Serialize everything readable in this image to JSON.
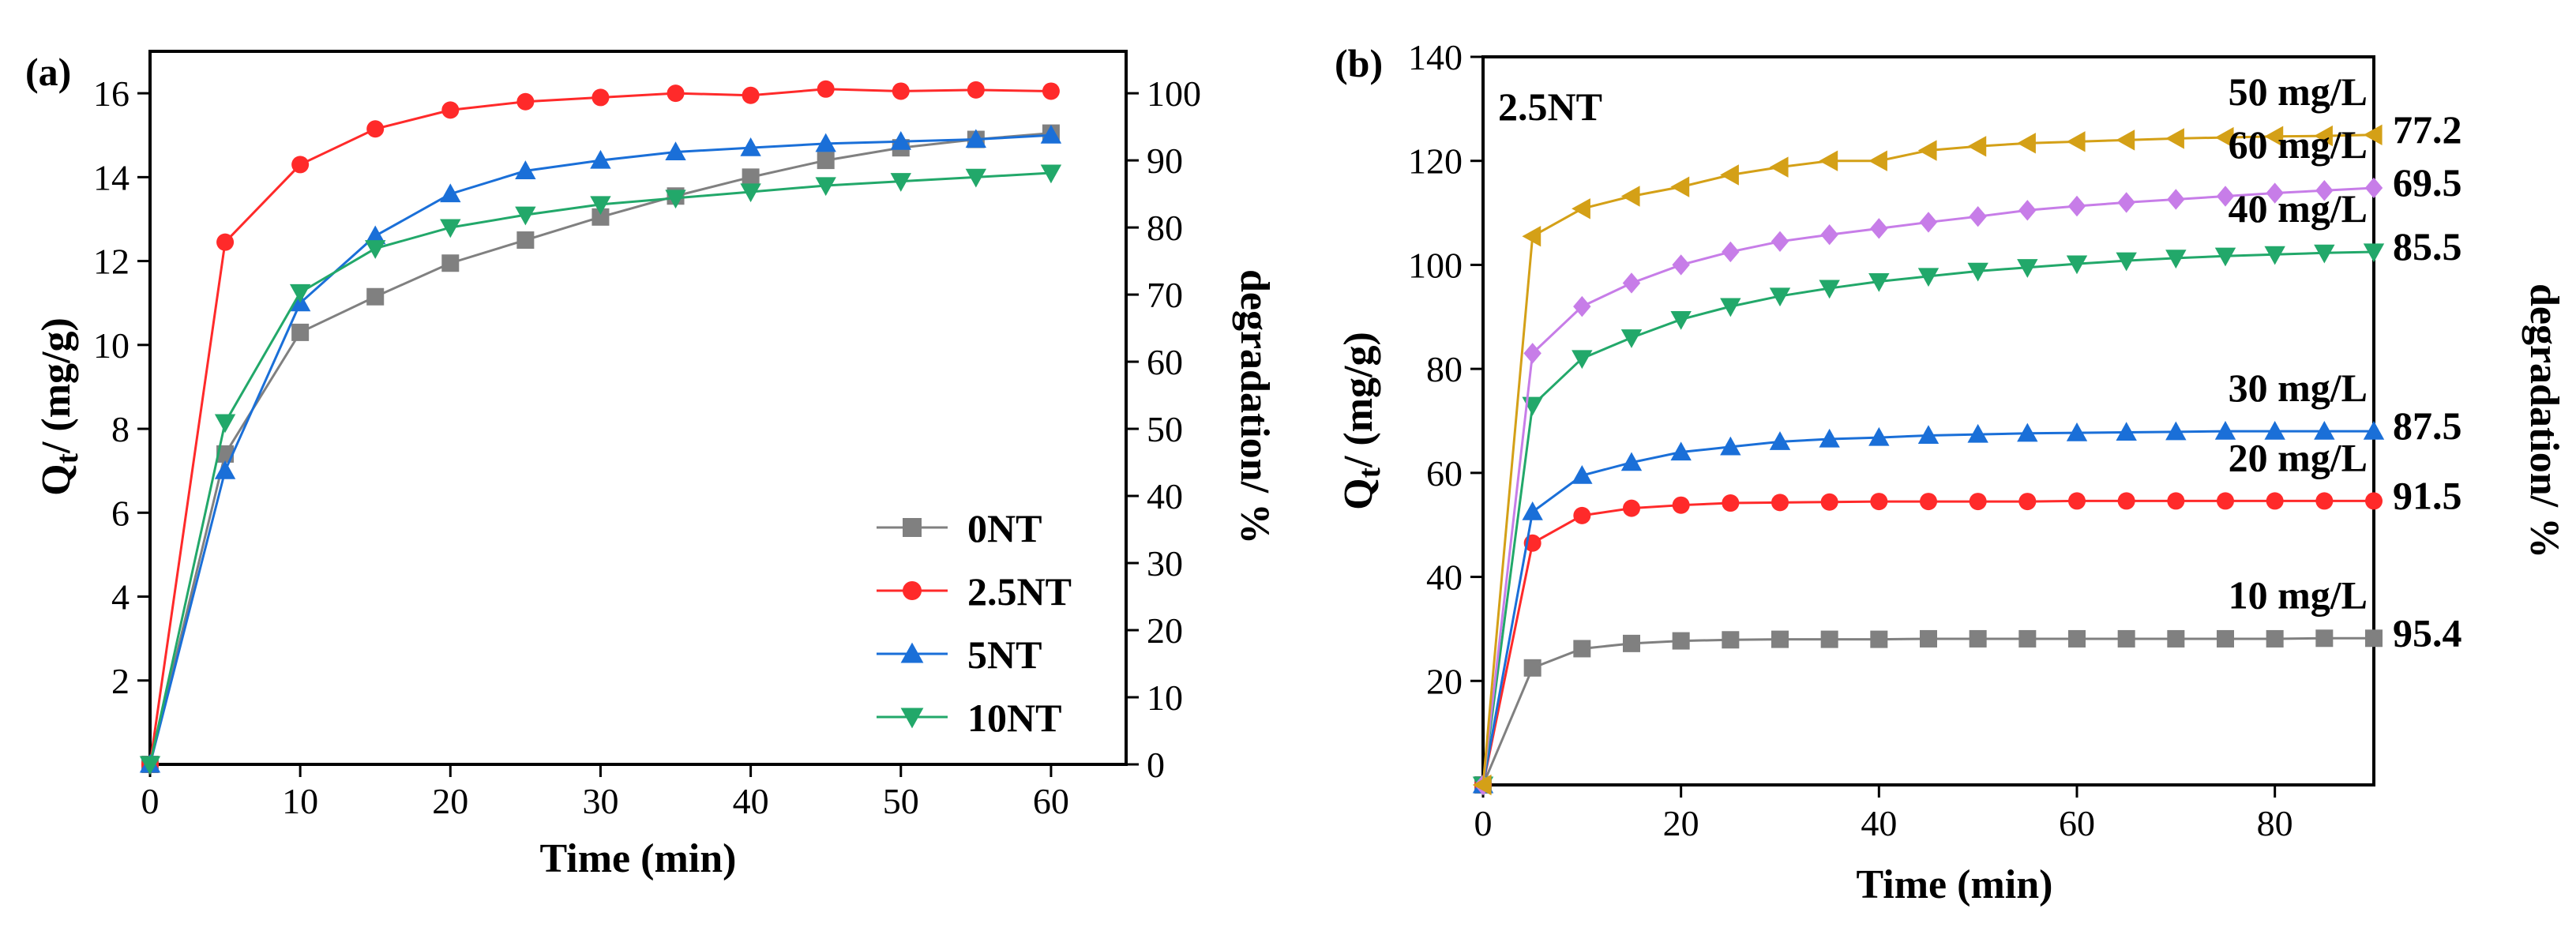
{
  "chart_data": [
    {
      "type": "line",
      "panel_label": "(a)",
      "xlabel": "Time (min)",
      "ylabel_left": "Q",
      "ylabel_left_sub": "t",
      "ylabel_left_suffix": "/ (mg/g)",
      "ylabel_right": "degradation/ %",
      "xlim": [
        0,
        65
      ],
      "ylim_left": [
        0,
        17
      ],
      "ylim_right": [
        0,
        106.25
      ],
      "xticks": [
        0,
        10,
        20,
        30,
        40,
        50,
        60
      ],
      "yticks_left": [
        2,
        4,
        6,
        8,
        10,
        12,
        14,
        16
      ],
      "yticks_right": [
        0,
        10,
        20,
        30,
        40,
        50,
        60,
        70,
        80,
        90,
        100
      ],
      "legend_position": "bottom-right",
      "x": [
        0,
        5,
        10,
        15,
        20,
        25,
        30,
        35,
        40,
        45,
        50,
        55,
        60
      ],
      "series": [
        {
          "name": "0NT",
          "color": "#808080",
          "marker": "square",
          "values": [
            0,
            7.4,
            10.3,
            11.15,
            11.95,
            12.5,
            13.05,
            13.55,
            14.0,
            14.4,
            14.7,
            14.9,
            15.05
          ]
        },
        {
          "name": "2.5NT",
          "color": "#ff2a2a",
          "marker": "circle",
          "values": [
            0,
            12.45,
            14.3,
            15.15,
            15.6,
            15.8,
            15.9,
            16.0,
            15.95,
            16.1,
            16.05,
            16.08,
            16.05
          ]
        },
        {
          "name": "5NT",
          "color": "#1a6fd8",
          "marker": "triangle-up",
          "values": [
            0,
            7.0,
            11.0,
            12.6,
            13.6,
            14.15,
            14.4,
            14.6,
            14.7,
            14.8,
            14.85,
            14.9,
            15.0
          ]
        },
        {
          "name": "10NT",
          "color": "#22a86a",
          "marker": "triangle-down",
          "values": [
            0,
            8.15,
            11.25,
            12.3,
            12.8,
            13.1,
            13.35,
            13.5,
            13.65,
            13.8,
            13.9,
            14.0,
            14.1
          ]
        }
      ]
    },
    {
      "type": "line",
      "panel_label": "(b)",
      "inset_label": "2.5NT",
      "xlabel": "Time (min)",
      "ylabel_left": "Q",
      "ylabel_left_sub": "t",
      "ylabel_left_suffix": "/ (mg/g)",
      "ylabel_right": "degradation/ %",
      "xlim": [
        0,
        90
      ],
      "ylim": [
        0,
        140
      ],
      "xticks": [
        0,
        20,
        40,
        60,
        80
      ],
      "yticks": [
        20,
        40,
        60,
        80,
        100,
        120,
        140
      ],
      "x": [
        0,
        5,
        10,
        15,
        20,
        25,
        30,
        35,
        40,
        45,
        50,
        55,
        60,
        65,
        70,
        75,
        80,
        85,
        90
      ],
      "series": [
        {
          "name": "10 mg/L",
          "degradation_label": "95.4",
          "color": "#808080",
          "marker": "square",
          "values": [
            0,
            22.5,
            26.2,
            27.2,
            27.7,
            27.9,
            28.0,
            28.0,
            28.0,
            28.1,
            28.1,
            28.1,
            28.1,
            28.1,
            28.1,
            28.1,
            28.1,
            28.2,
            28.2
          ]
        },
        {
          "name": "20 mg/L",
          "degradation_label": "91.5",
          "color": "#ff2a2a",
          "marker": "circle",
          "values": [
            0,
            46.5,
            51.8,
            53.2,
            53.8,
            54.2,
            54.3,
            54.4,
            54.5,
            54.5,
            54.5,
            54.5,
            54.6,
            54.6,
            54.6,
            54.6,
            54.6,
            54.6,
            54.6
          ]
        },
        {
          "name": "30 mg/L",
          "degradation_label": "87.5",
          "color": "#1a6fd8",
          "marker": "triangle-up",
          "values": [
            0,
            52.5,
            59.5,
            62.0,
            64.0,
            65.0,
            66.0,
            66.5,
            66.8,
            67.2,
            67.4,
            67.6,
            67.7,
            67.8,
            67.9,
            68.0,
            68.0,
            68.0,
            68.0
          ]
        },
        {
          "name": "40 mg/L",
          "degradation_label": "85.5",
          "color": "#22a86a",
          "marker": "triangle-down",
          "values": [
            0,
            73.0,
            82.0,
            86.0,
            89.5,
            92.0,
            94.0,
            95.5,
            96.8,
            97.8,
            98.8,
            99.5,
            100.2,
            100.8,
            101.3,
            101.7,
            102.0,
            102.3,
            102.5
          ]
        },
        {
          "name": "60 mg/L",
          "degradation_label": "69.5",
          "color": "#c77de8",
          "marker": "diamond",
          "values": [
            0,
            83.0,
            92.0,
            96.5,
            100.0,
            102.5,
            104.5,
            105.8,
            107.0,
            108.2,
            109.3,
            110.5,
            111.3,
            112.0,
            112.6,
            113.2,
            113.8,
            114.3,
            114.8
          ]
        },
        {
          "name": "50 mg/L",
          "degradation_label": "77.2",
          "color": "#d4a017",
          "marker": "triangle-left",
          "values": [
            0,
            105.5,
            110.8,
            113.2,
            115.0,
            117.3,
            118.8,
            120.0,
            120.0,
            122.0,
            122.8,
            123.4,
            123.7,
            124.0,
            124.3,
            124.5,
            124.7,
            124.8,
            125.0
          ]
        }
      ]
    }
  ]
}
